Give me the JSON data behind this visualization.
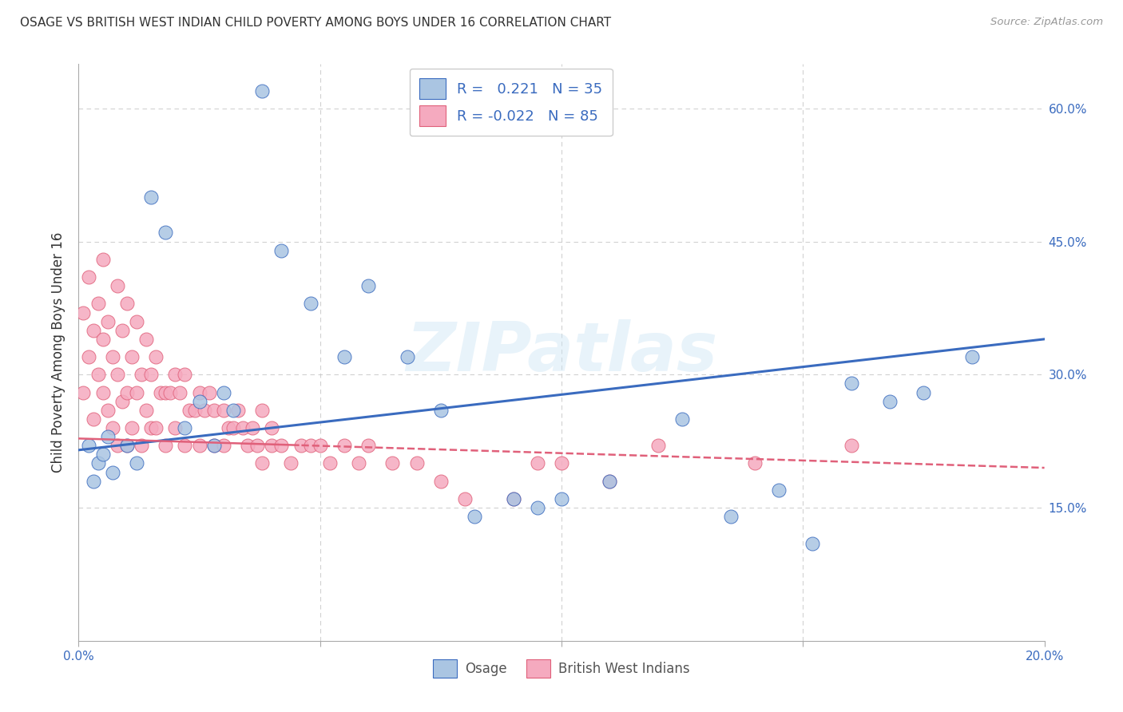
{
  "title": "OSAGE VS BRITISH WEST INDIAN CHILD POVERTY AMONG BOYS UNDER 16 CORRELATION CHART",
  "source": "Source: ZipAtlas.com",
  "ylabel": "Child Poverty Among Boys Under 16",
  "xlim": [
    0.0,
    0.2
  ],
  "ylim": [
    0.0,
    0.65
  ],
  "yticks_right": [
    0.15,
    0.3,
    0.45,
    0.6
  ],
  "ytick_labels_right": [
    "15.0%",
    "30.0%",
    "45.0%",
    "60.0%"
  ],
  "background_color": "#ffffff",
  "grid_color": "#cccccc",
  "title_color": "#333333",
  "osage_color": "#aac5e2",
  "bwi_color": "#f5aabf",
  "trend_osage_color": "#3a6bbf",
  "trend_bwi_color": "#e0607a",
  "legend_R_osage": "0.221",
  "legend_N_osage": "35",
  "legend_R_bwi": "-0.022",
  "legend_N_bwi": "85",
  "legend_label_osage": "Osage",
  "legend_label_bwi": "British West Indians",
  "watermark": "ZIPatlas",
  "osage_x": [
    0.002,
    0.003,
    0.004,
    0.005,
    0.006,
    0.007,
    0.01,
    0.012,
    0.015,
    0.018,
    0.022,
    0.025,
    0.028,
    0.03,
    0.032,
    0.038,
    0.042,
    0.048,
    0.055,
    0.06,
    0.068,
    0.075,
    0.082,
    0.09,
    0.095,
    0.1,
    0.11,
    0.125,
    0.135,
    0.145,
    0.152,
    0.16,
    0.168,
    0.175,
    0.185
  ],
  "osage_y": [
    0.22,
    0.18,
    0.2,
    0.21,
    0.23,
    0.19,
    0.22,
    0.2,
    0.5,
    0.46,
    0.24,
    0.27,
    0.22,
    0.28,
    0.26,
    0.62,
    0.44,
    0.38,
    0.32,
    0.4,
    0.32,
    0.26,
    0.14,
    0.16,
    0.15,
    0.16,
    0.18,
    0.25,
    0.14,
    0.17,
    0.11,
    0.29,
    0.27,
    0.28,
    0.32
  ],
  "bwi_x": [
    0.001,
    0.001,
    0.002,
    0.002,
    0.003,
    0.003,
    0.004,
    0.004,
    0.005,
    0.005,
    0.005,
    0.006,
    0.006,
    0.007,
    0.007,
    0.008,
    0.008,
    0.008,
    0.009,
    0.009,
    0.01,
    0.01,
    0.01,
    0.011,
    0.011,
    0.012,
    0.012,
    0.013,
    0.013,
    0.014,
    0.014,
    0.015,
    0.015,
    0.016,
    0.016,
    0.017,
    0.018,
    0.018,
    0.019,
    0.02,
    0.02,
    0.021,
    0.022,
    0.022,
    0.023,
    0.024,
    0.025,
    0.025,
    0.026,
    0.027,
    0.028,
    0.028,
    0.03,
    0.03,
    0.031,
    0.032,
    0.033,
    0.034,
    0.035,
    0.036,
    0.037,
    0.038,
    0.038,
    0.04,
    0.04,
    0.042,
    0.044,
    0.046,
    0.048,
    0.05,
    0.052,
    0.055,
    0.058,
    0.06,
    0.065,
    0.07,
    0.075,
    0.08,
    0.09,
    0.095,
    0.1,
    0.11,
    0.12,
    0.14,
    0.16
  ],
  "bwi_y": [
    0.37,
    0.28,
    0.41,
    0.32,
    0.35,
    0.25,
    0.38,
    0.3,
    0.43,
    0.34,
    0.28,
    0.36,
    0.26,
    0.32,
    0.24,
    0.4,
    0.3,
    0.22,
    0.35,
    0.27,
    0.38,
    0.28,
    0.22,
    0.32,
    0.24,
    0.36,
    0.28,
    0.3,
    0.22,
    0.34,
    0.26,
    0.3,
    0.24,
    0.32,
    0.24,
    0.28,
    0.28,
    0.22,
    0.28,
    0.3,
    0.24,
    0.28,
    0.3,
    0.22,
    0.26,
    0.26,
    0.28,
    0.22,
    0.26,
    0.28,
    0.26,
    0.22,
    0.26,
    0.22,
    0.24,
    0.24,
    0.26,
    0.24,
    0.22,
    0.24,
    0.22,
    0.2,
    0.26,
    0.22,
    0.24,
    0.22,
    0.2,
    0.22,
    0.22,
    0.22,
    0.2,
    0.22,
    0.2,
    0.22,
    0.2,
    0.2,
    0.18,
    0.16,
    0.16,
    0.2,
    0.2,
    0.18,
    0.22,
    0.2,
    0.22
  ]
}
